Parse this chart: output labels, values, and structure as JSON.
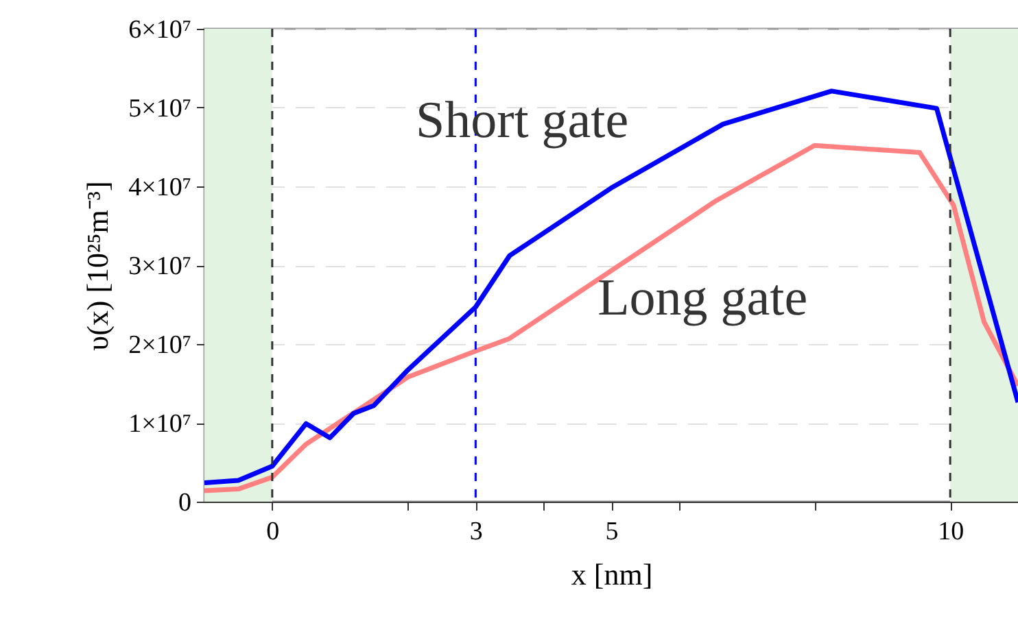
{
  "chart_data": {
    "type": "line",
    "xlabel": "x [nm]",
    "ylabel": "υ(x) [10²⁵m⁻³]",
    "xlim": [
      -1,
      11
    ],
    "ylim": [
      0,
      60000000
    ],
    "xticks": [
      0,
      {
        "value": 2,
        "label": null
      },
      3,
      {
        "value": 4,
        "label": null
      },
      5,
      {
        "value": 6,
        "label": null
      },
      {
        "value": 8,
        "label": null
      },
      10
    ],
    "yticks": [
      0,
      {
        "value": 10000000,
        "label": "1×10⁷"
      },
      {
        "value": 20000000,
        "label": "2×10⁷"
      },
      {
        "value": 30000000,
        "label": "3×10⁷"
      },
      {
        "value": 40000000,
        "label": "4×10⁷"
      },
      {
        "value": 50000000,
        "label": "5×10⁷"
      },
      {
        "value": 60000000,
        "label": "6×10⁷"
      }
    ],
    "grid": "y",
    "legend": false,
    "series": [
      {
        "name": "Short gate",
        "color": "#0000ff",
        "x": [
          -1,
          -0.5,
          0,
          0.5,
          0.85,
          1.2,
          1.5,
          2,
          2.5,
          3,
          3.5,
          5,
          6.65,
          8.25,
          9.8,
          11
        ],
        "values": [
          2400000,
          2700000,
          4500000,
          9900000,
          8100000,
          11200000,
          12200000,
          16700000,
          20700000,
          24700000,
          31200000,
          39800000,
          47900000,
          52100000,
          49900000,
          12600000
        ]
      },
      {
        "name": "Long gate",
        "color": "#ff8080",
        "x": [
          -1,
          -0.5,
          0,
          0.5,
          2,
          3,
          3.5,
          6.55,
          8,
          9.55,
          10.05,
          10.5,
          11
        ],
        "values": [
          1400000,
          1600000,
          3100000,
          7300000,
          15800000,
          19100000,
          20700000,
          38200000,
          45200000,
          44300000,
          37600000,
          22800000,
          14700000
        ]
      }
    ],
    "bands": [
      {
        "axis": "x",
        "from": -1,
        "to": 0,
        "color": "#e2f3e2"
      },
      {
        "axis": "x",
        "from": 10,
        "to": 11,
        "color": "#e2f3e2"
      }
    ],
    "ref_lines": [
      {
        "axis": "x",
        "value": 0,
        "color": "#333333",
        "line_style": "dashed"
      },
      {
        "axis": "x",
        "value": 3,
        "color": "#0000ff",
        "line_style": "dashed"
      },
      {
        "axis": "x",
        "value": 10,
        "color": "#333333",
        "line_style": "dashed"
      }
    ]
  }
}
